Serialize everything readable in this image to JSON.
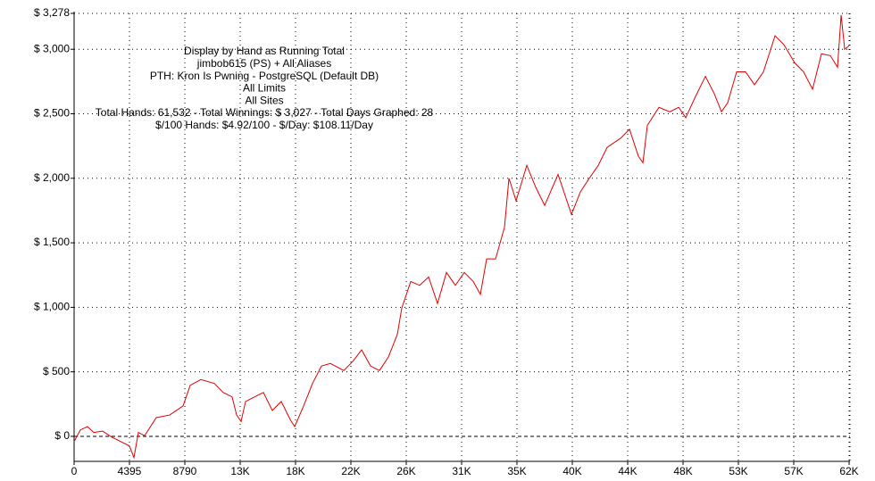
{
  "chart_data": {
    "type": "line",
    "annotation_lines": [
      "Display by Hand as Running Total",
      "jimbob615 (PS) + All Aliases",
      "PTH: Kron Is Pwning - PostgreSQL (Default DB)",
      "All Limits",
      "All Sites",
      "Total Hands: 61,532 - Total Winnings: $ 3,027 - Total Days Graphed: 28",
      "$/100 Hands: $4.92/100 - $/Day: $108.11/Day"
    ],
    "x": [
      0,
      496,
      1063,
      1560,
      2268,
      2977,
      3686,
      4395,
      4750,
      5104,
      5600,
      6522,
      7585,
      8649,
      9216,
      10066,
      11130,
      11839,
      12548,
      12902,
      13256,
      13611,
      14320,
      15029,
      15738,
      16446,
      17155,
      17510,
      18219,
      18928,
      19637,
      20345,
      21409,
      22118,
      22827,
      23535,
      24244,
      24953,
      25662,
      26017,
      26726,
      27434,
      28143,
      28852,
      29561,
      30270,
      30979,
      31688,
      32255,
      32751,
      33460,
      34169,
      34523,
      35091,
      35941,
      36650,
      37359,
      38422,
      39486,
      40195,
      40904,
      41612,
      42321,
      43385,
      44094,
      44802,
      45157,
      45511,
      46433,
      47284,
      47993,
      48560,
      49269,
      50119,
      50828,
      51395,
      51891,
      52600,
      53309,
      54018,
      54727,
      55649,
      56358,
      57208,
      57917,
      58626,
      59335,
      60044,
      60611,
      60895,
      61179,
      61532
    ],
    "series": [
      {
        "name": "Running Total",
        "color": "#e00000",
        "values": [
          -40,
          50,
          75,
          30,
          40,
          -5,
          -40,
          -75,
          -165,
          30,
          5,
          145,
          165,
          235,
          395,
          440,
          410,
          340,
          305,
          165,
          115,
          270,
          305,
          340,
          200,
          270,
          130,
          75,
          235,
          410,
          545,
          565,
          510,
          580,
          670,
          545,
          510,
          615,
          790,
          995,
          1200,
          1170,
          1235,
          1030,
          1270,
          1170,
          1270,
          1200,
          1100,
          1375,
          1375,
          1620,
          2000,
          1825,
          2100,
          1930,
          1790,
          2030,
          1720,
          1895,
          2000,
          2100,
          2240,
          2310,
          2380,
          2170,
          2120,
          2410,
          2550,
          2515,
          2550,
          2470,
          2620,
          2790,
          2655,
          2515,
          2585,
          2825,
          2825,
          2725,
          2825,
          3105,
          3035,
          2895,
          2825,
          2690,
          2965,
          2950,
          2860,
          3265,
          3000,
          3027
        ]
      }
    ],
    "xlim": [
      0,
      61600
    ],
    "xticks": [
      0,
      4395,
      8790,
      {
        "value": 13185,
        "label": "13K"
      },
      {
        "value": 17580,
        "label": "18K"
      },
      {
        "value": 21975,
        "label": "22K"
      },
      {
        "value": 26370,
        "label": "26K"
      },
      {
        "value": 30765,
        "label": "31K"
      },
      {
        "value": 35160,
        "label": "35K"
      },
      {
        "value": 39555,
        "label": "40K"
      },
      {
        "value": 43950,
        "label": "44K"
      },
      {
        "value": 48345,
        "label": "48K"
      },
      {
        "value": 52740,
        "label": "53K"
      },
      {
        "value": 57135,
        "label": "57K"
      },
      {
        "value": 61530,
        "label": "62K"
      }
    ],
    "ylim": [
      -194,
      3278
    ],
    "yticks": [
      {
        "value": 0,
        "label": "$ 0"
      },
      {
        "value": 500,
        "label": "$ 500"
      },
      {
        "value": 1000,
        "label": "$ 1,000"
      },
      {
        "value": 1500,
        "label": "$ 1,500"
      },
      {
        "value": 2000,
        "label": "$ 2,000"
      },
      {
        "value": 2500,
        "label": "$ 2,500"
      },
      {
        "value": 3000,
        "label": "$ 3,000"
      },
      {
        "value": 3278,
        "label": "$ 3,278"
      }
    ],
    "grid": true
  }
}
